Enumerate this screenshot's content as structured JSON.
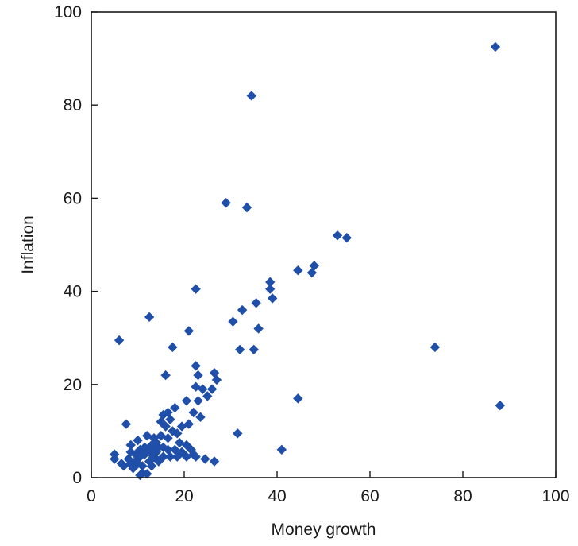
{
  "chart_data": {
    "type": "scatter",
    "title": "",
    "xlabel": "Money growth",
    "ylabel": "Inflation",
    "xlim": [
      0,
      100
    ],
    "ylim": [
      0,
      100
    ],
    "xticks": [
      0,
      20,
      40,
      60,
      80,
      100
    ],
    "yticks": [
      0,
      20,
      40,
      60,
      80,
      100
    ],
    "grid": false,
    "marker": "diamond",
    "colors": {
      "marker": "#1f4fa8",
      "axis": "#1a1a1a"
    },
    "series": [
      {
        "points": [
          [
            87,
            92.5
          ],
          [
            34.5,
            82
          ],
          [
            29,
            59
          ],
          [
            33.5,
            58
          ],
          [
            53,
            52
          ],
          [
            55,
            51.5
          ],
          [
            48,
            45.5
          ],
          [
            47.5,
            44
          ],
          [
            44.5,
            44.5
          ],
          [
            38.5,
            42
          ],
          [
            38.5,
            40.5
          ],
          [
            39,
            38.5
          ],
          [
            35.5,
            37.5
          ],
          [
            32.5,
            36
          ],
          [
            30.5,
            33.5
          ],
          [
            36,
            32
          ],
          [
            22.5,
            40.5
          ],
          [
            21,
            31.5
          ],
          [
            12.5,
            34.5
          ],
          [
            6,
            29.5
          ],
          [
            17.5,
            28
          ],
          [
            32,
            27.5
          ],
          [
            35,
            27.5
          ],
          [
            74,
            28
          ],
          [
            88,
            15.5
          ],
          [
            44.5,
            17
          ],
          [
            16,
            22
          ],
          [
            22.5,
            24
          ],
          [
            23,
            22
          ],
          [
            26.5,
            22.5
          ],
          [
            27,
            21
          ],
          [
            22.5,
            19.5
          ],
          [
            24,
            19
          ],
          [
            25,
            17.5
          ],
          [
            26,
            19
          ],
          [
            23,
            16.5
          ],
          [
            20.5,
            16.5
          ],
          [
            22,
            14
          ],
          [
            18,
            15
          ],
          [
            23.5,
            13
          ],
          [
            21,
            11.5
          ],
          [
            17,
            12.5
          ],
          [
            15.5,
            13.5
          ],
          [
            16,
            11
          ],
          [
            17.5,
            10
          ],
          [
            15,
            9
          ],
          [
            16.5,
            8.5
          ],
          [
            18.5,
            9.5
          ],
          [
            19,
            7.5
          ],
          [
            20.5,
            7
          ],
          [
            21.5,
            6
          ],
          [
            22.5,
            4.5
          ],
          [
            24.5,
            4
          ],
          [
            26.5,
            3.5
          ],
          [
            31.5,
            9.5
          ],
          [
            41,
            6
          ],
          [
            7.5,
            11.5
          ],
          [
            8.5,
            7
          ],
          [
            10,
            8
          ],
          [
            12,
            9
          ],
          [
            13.5,
            8.5
          ],
          [
            14.5,
            6.5
          ],
          [
            13,
            7
          ],
          [
            12,
            6
          ],
          [
            11.5,
            5
          ],
          [
            10.5,
            4.5
          ],
          [
            9.5,
            3.5
          ],
          [
            8.5,
            3
          ],
          [
            8,
            4
          ],
          [
            7,
            2.5
          ],
          [
            6.5,
            3
          ],
          [
            5,
            4
          ],
          [
            5,
            5
          ],
          [
            11,
            2.5
          ],
          [
            12.5,
            3.5
          ],
          [
            13.5,
            4.5
          ],
          [
            14.5,
            3.5
          ],
          [
            15.5,
            4.5
          ],
          [
            17,
            4.5
          ],
          [
            18.5,
            4.5
          ],
          [
            19.5,
            5.5
          ],
          [
            20.5,
            4.5
          ],
          [
            22,
            5
          ],
          [
            11,
            1
          ],
          [
            10.5,
            0.5
          ],
          [
            12,
            0.8
          ],
          [
            9,
            2
          ],
          [
            13,
            2.5
          ],
          [
            14,
            5.5
          ],
          [
            11.5,
            6.5
          ],
          [
            10.5,
            6
          ],
          [
            9.5,
            5
          ],
          [
            12.5,
            5.5
          ],
          [
            13.5,
            6
          ],
          [
            16.5,
            6
          ],
          [
            15.5,
            6.5
          ],
          [
            14,
            7.5
          ],
          [
            18,
            6
          ],
          [
            10,
            3
          ],
          [
            8.5,
            5.5
          ],
          [
            15,
            12
          ],
          [
            16.5,
            14
          ],
          [
            19.5,
            11
          ]
        ]
      }
    ]
  }
}
